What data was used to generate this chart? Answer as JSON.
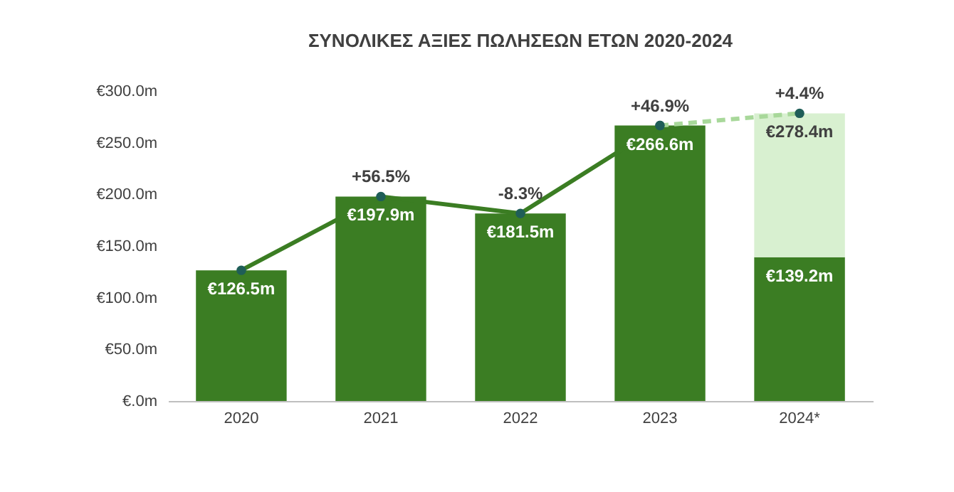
{
  "chart_data": {
    "type": "bar",
    "title": "ΣΥΝΟΛΙΚΕΣ ΑΞΙΕΣ ΠΩΛΗΣΕΩΝ ΕΤΩΝ 2020-2024",
    "categories": [
      "2020",
      "2021",
      "2022",
      "2023",
      "2024*"
    ],
    "stacked": true,
    "ylim": [
      0,
      300
    ],
    "yticks": [
      {
        "value": 0,
        "label": "€.0m"
      },
      {
        "value": 50,
        "label": "€50.0m"
      },
      {
        "value": 100,
        "label": "€100.0m"
      },
      {
        "value": 150,
        "label": "€150.0m"
      },
      {
        "value": 200,
        "label": "€200.0m"
      },
      {
        "value": 250,
        "label": "€250.0m"
      },
      {
        "value": 300,
        "label": "€300.0m"
      }
    ],
    "grid": false,
    "marker": "circle",
    "totals": [
      null,
      null,
      null,
      null,
      "€278.4m"
    ],
    "series": [
      {
        "color": "#3b7d23",
        "values": [
          126.5,
          197.9,
          181.5,
          266.6,
          139.2
        ],
        "value_labels": [
          "€126.5m",
          "€197.9m",
          "€181.5m",
          "€266.6m",
          "€139.2m"
        ]
      },
      {
        "color": "#d8f0d0",
        "values": [
          null,
          null,
          null,
          null,
          139.2
        ]
      },
      {
        "type": "line",
        "color": "#3b7d23",
        "line_style": "solid",
        "values": [
          126.5,
          197.9,
          181.5,
          266.6,
          null
        ]
      },
      {
        "type": "line",
        "color": "#a8d89a",
        "line_style": "dashed",
        "values": [
          null,
          null,
          null,
          266.6,
          278.4
        ]
      }
    ],
    "annotations": [
      {
        "text": "+56.5%",
        "x": "2021",
        "y": 197.9
      },
      {
        "text": "-8.3%",
        "x": "2022",
        "y": 181.5
      },
      {
        "text": "+46.9%",
        "x": "2023",
        "y": 266.6
      },
      {
        "text": "+4.4%",
        "x": "2024*",
        "y": 278.4
      }
    ]
  }
}
